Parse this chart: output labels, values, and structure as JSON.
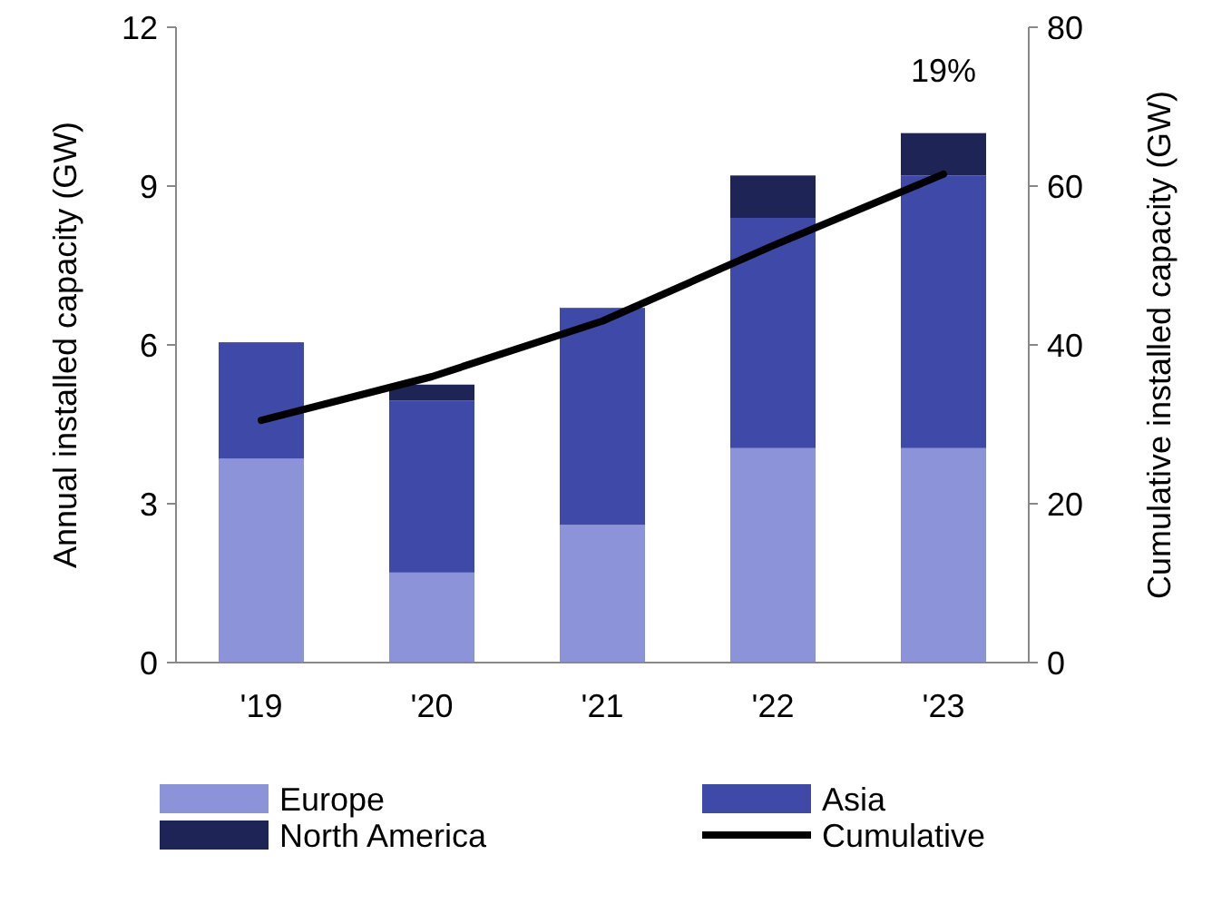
{
  "chart_data": {
    "type": "bar",
    "stacked": true,
    "categories": [
      "'19",
      "'20",
      "'21",
      "'22",
      "'23"
    ],
    "ylabel": "Annual installed capacity (GW)",
    "y2label": "Cumulative installed capacity (GW)",
    "ylim": [
      0,
      12
    ],
    "yticks": [
      0,
      3,
      6,
      9,
      12
    ],
    "y2lim": [
      0,
      80
    ],
    "y2ticks": [
      0,
      20,
      40,
      60,
      80
    ],
    "series": [
      {
        "name": "Europe",
        "color": "#8c93d8",
        "values": [
          3.85,
          1.7,
          2.6,
          4.05,
          4.05
        ]
      },
      {
        "name": "Asia",
        "color": "#3f4aa8",
        "values": [
          2.2,
          3.25,
          4.1,
          4.35,
          5.15
        ]
      },
      {
        "name": "North America",
        "color": "#1f2456",
        "values": [
          null,
          0.3,
          null,
          0.8,
          0.8
        ]
      },
      {
        "name": "Cumulative",
        "type": "line",
        "axis": "y2",
        "color": "#000000",
        "values": [
          30.5,
          36,
          43,
          52.5,
          61.5
        ]
      }
    ],
    "annotations": [
      "19%"
    ],
    "legend": "bottom",
    "grid": false
  }
}
